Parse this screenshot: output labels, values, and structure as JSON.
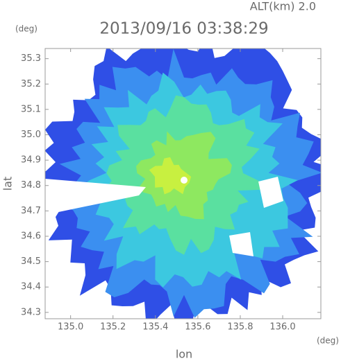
{
  "chart_data": {
    "type": "radar-map",
    "title": "2013/09/16 03:38:29",
    "annotation": "ALT(km) 2.0",
    "x_label": "lon",
    "y_label": "lat",
    "x_unit": "(deg)",
    "y_unit": "(deg)",
    "xlim": [
      134.88,
      136.18
    ],
    "ylim": [
      34.275,
      35.34
    ],
    "xticks": [
      {
        "value": 135.0,
        "label": "135.0"
      },
      135.2,
      135.4,
      135.6,
      135.8,
      {
        "value": 136.0,
        "label": "136.0"
      }
    ],
    "yticks": [
      35.3,
      35.2,
      35.1,
      {
        "value": 35.0,
        "label": "35.0"
      },
      34.9,
      34.8,
      34.7,
      34.6,
      34.5,
      34.4,
      34.3
    ],
    "colors": [
      "#2f4fe6",
      "#3b8ff0",
      "#3cc8e0",
      "#5ae0a0",
      "#8ee860",
      "#c8f040"
    ]
  }
}
